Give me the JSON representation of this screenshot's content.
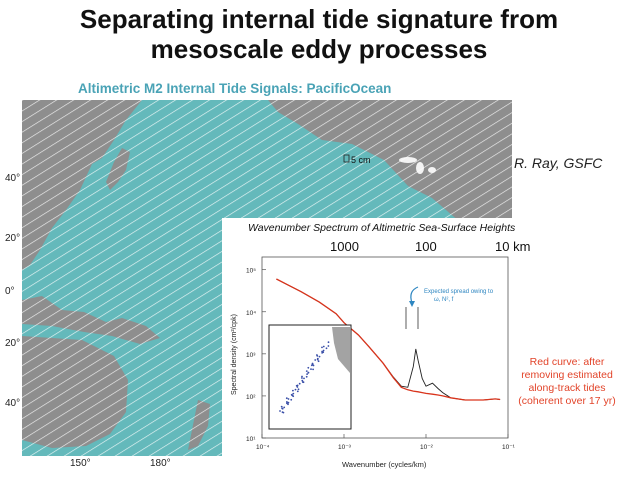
{
  "slide": {
    "title_line1": "Separating internal tide signature from",
    "title_line2": "mesoscale eddy processes",
    "credit": "R. Ray, GSFC",
    "note_lines": [
      "Red curve: after",
      "removing estimated",
      "along-track tides",
      "(coherent over 17 yr)"
    ]
  },
  "map": {
    "title": "Altimetric M2 Internal Tide Signals: PacificOcean",
    "scale_label": "5 cm",
    "lat_labels": [
      "40°",
      "20°",
      "0°",
      "20°",
      "40°"
    ],
    "lon_labels": [
      "150°",
      "180°"
    ]
  },
  "spectrum": {
    "title": "Wavenumber Spectrum of Altimetric Sea-Surface Heights",
    "top_ticks": [
      "1000",
      "100",
      "10 km"
    ],
    "ylabel": "Spectral density (cm²/cpk)",
    "xlabel": "Wavenumber (cycles/km)",
    "y_tick_labels": [
      "10⁵",
      "10⁴",
      "10³",
      "10²",
      "10¹"
    ],
    "x_tick_labels": [
      "10⁻⁴",
      "10⁻³",
      "10⁻²",
      "10⁻¹"
    ],
    "annotation_line1": "Expected spread owing to",
    "annotation_line2": "ω, N², f",
    "colors": {
      "raw": "#222222",
      "corrected": "#d9341c",
      "annotation": "#2e86c1"
    }
  },
  "chart_data": {
    "type": "line",
    "title": "Wavenumber Spectrum of Altimetric Sea-Surface Heights",
    "xlabel": "Wavenumber (cycles/km)",
    "ylabel": "Spectral density (cm²/cpk)",
    "x_scale": "log",
    "y_scale": "log",
    "xlim": [
      0.0001,
      0.1
    ],
    "ylim": [
      10,
      200000
    ],
    "series": [
      {
        "color": "#222222",
        "points": [
          [
            0.00015,
            60000
          ],
          [
            0.0002,
            45000
          ],
          [
            0.0003,
            30000
          ],
          [
            0.0005,
            17000
          ],
          [
            0.0008,
            9000
          ],
          [
            0.001,
            5500
          ],
          [
            0.0015,
            2800
          ],
          [
            0.002,
            1500
          ],
          [
            0.003,
            600
          ],
          [
            0.004,
            280
          ],
          [
            0.005,
            170
          ],
          [
            0.006,
            160
          ],
          [
            0.007,
            500
          ],
          [
            0.0075,
            1300
          ],
          [
            0.008,
            700
          ],
          [
            0.009,
            260
          ],
          [
            0.01,
            170
          ],
          [
            0.012,
            200
          ],
          [
            0.014,
            150
          ],
          [
            0.016,
            120
          ],
          [
            0.02,
            90
          ],
          [
            0.03,
            80
          ],
          [
            0.05,
            80
          ],
          [
            0.07,
            85
          ],
          [
            0.08,
            82
          ]
        ]
      },
      {
        "color": "#d9341c",
        "points": [
          [
            0.00015,
            60000
          ],
          [
            0.0002,
            45000
          ],
          [
            0.0003,
            30000
          ],
          [
            0.0005,
            17000
          ],
          [
            0.0008,
            9000
          ],
          [
            0.001,
            5500
          ],
          [
            0.0015,
            2800
          ],
          [
            0.002,
            1500
          ],
          [
            0.003,
            600
          ],
          [
            0.004,
            270
          ],
          [
            0.005,
            160
          ],
          [
            0.006,
            140
          ],
          [
            0.007,
            130
          ],
          [
            0.008,
            125
          ],
          [
            0.009,
            120
          ],
          [
            0.01,
            115
          ],
          [
            0.012,
            110
          ],
          [
            0.014,
            105
          ],
          [
            0.016,
            100
          ],
          [
            0.02,
            90
          ],
          [
            0.03,
            80
          ],
          [
            0.05,
            80
          ],
          [
            0.07,
            85
          ],
          [
            0.08,
            82
          ]
        ]
      }
    ]
  }
}
